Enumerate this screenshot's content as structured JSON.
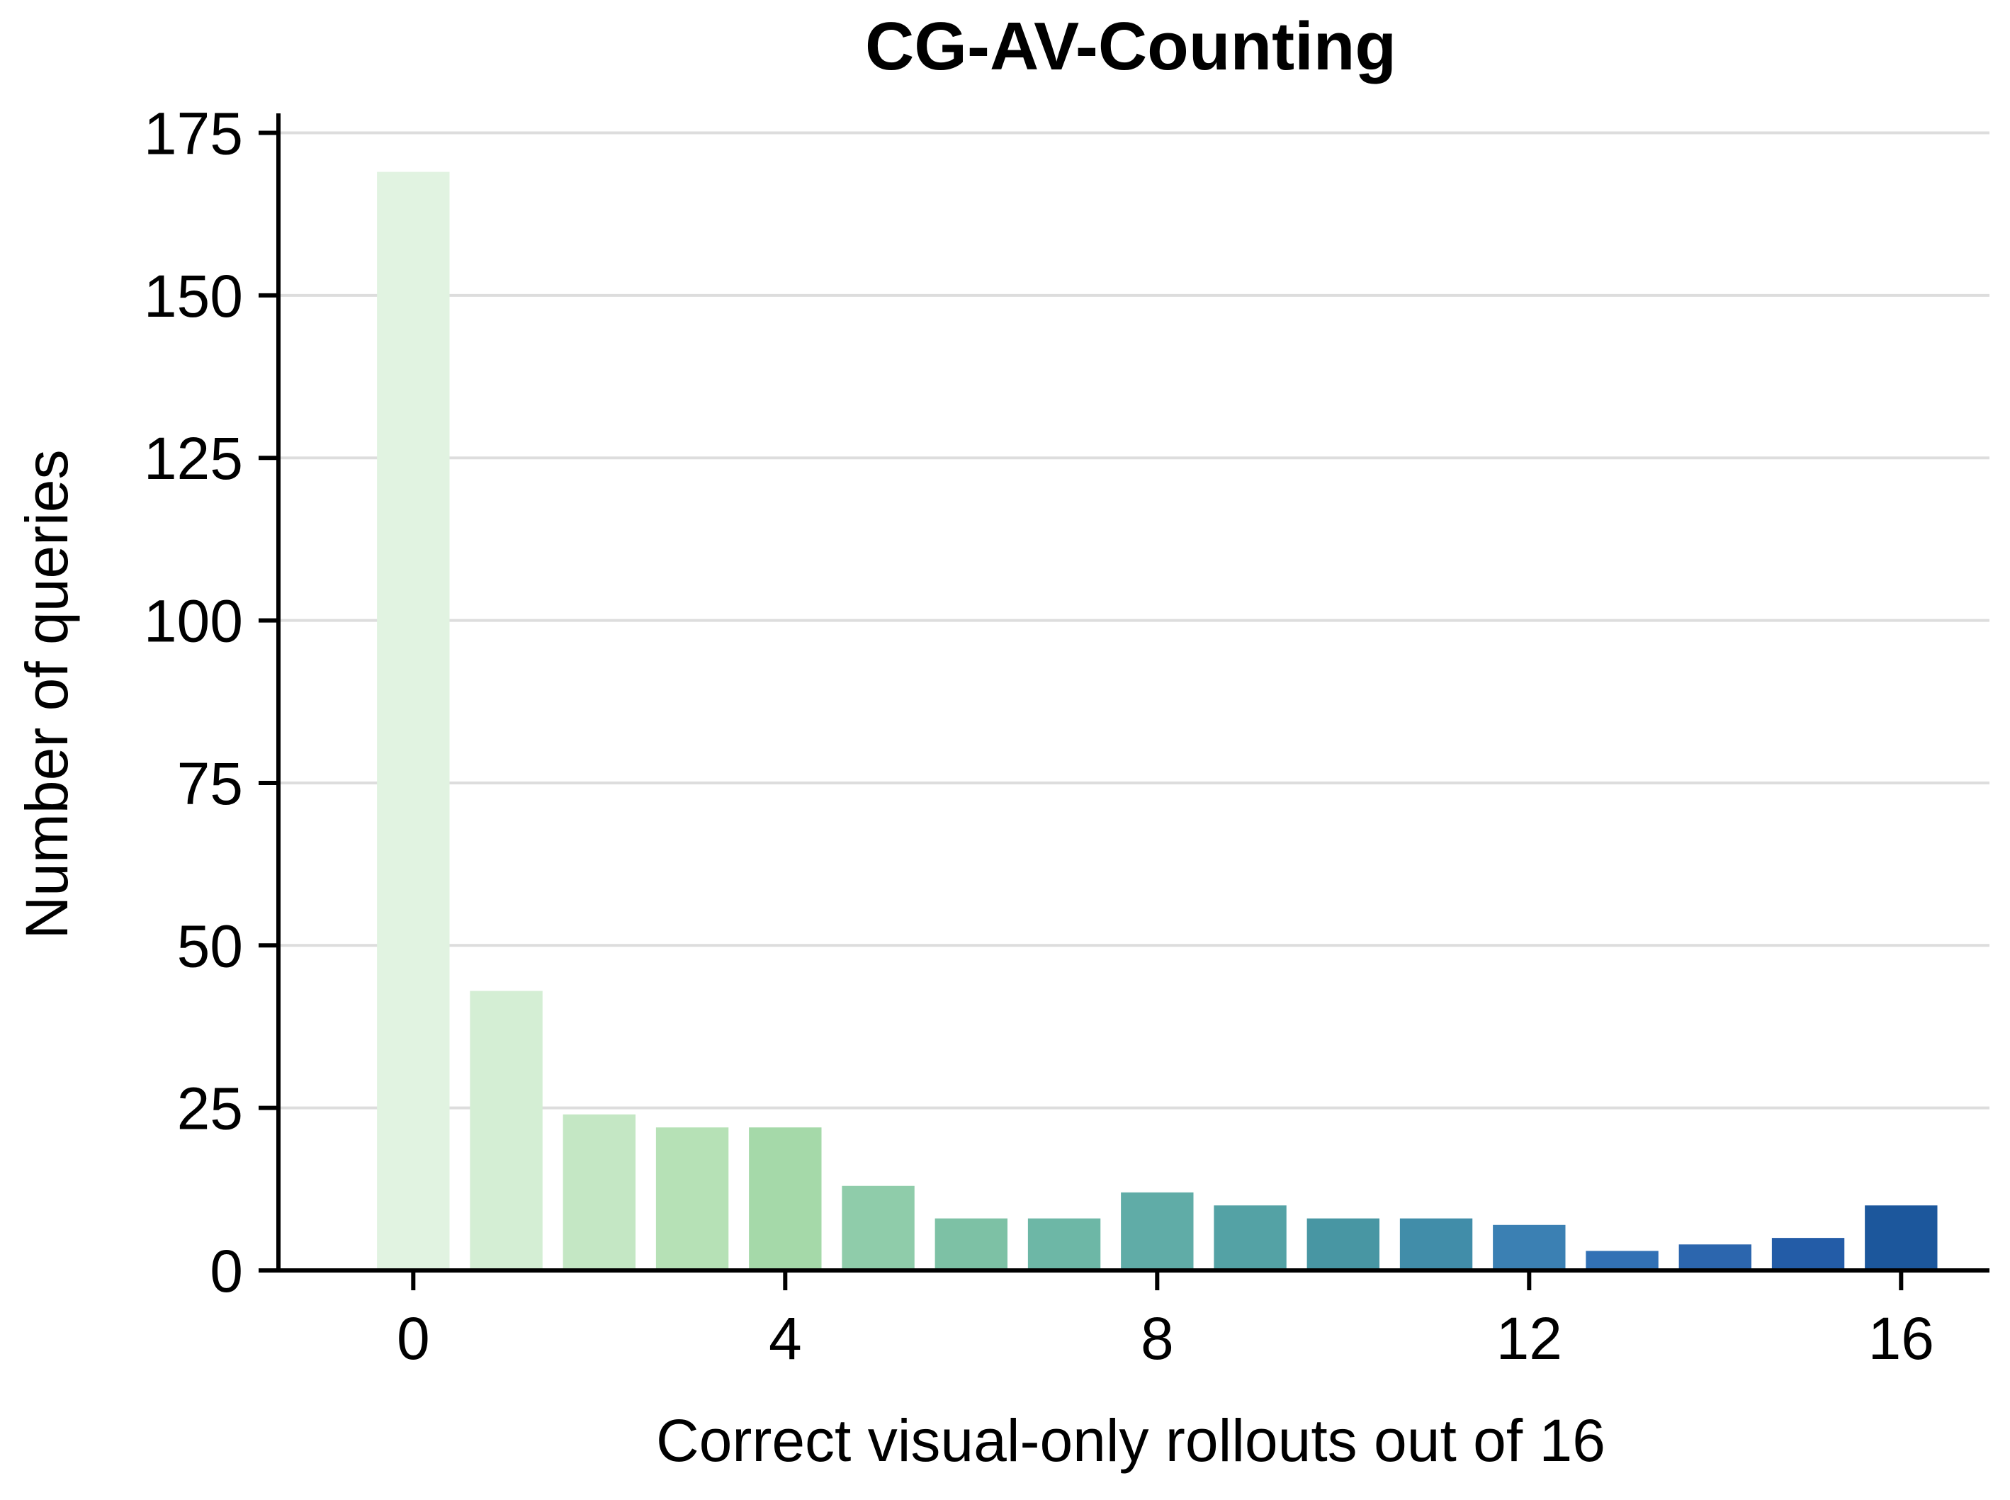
{
  "chart_data": {
    "type": "bar",
    "title": "CG-AV-Counting",
    "xlabel": "Correct visual-only rollouts out of 16",
    "ylabel": "Number of queries",
    "x": [
      0,
      1,
      2,
      3,
      4,
      5,
      6,
      7,
      8,
      9,
      10,
      11,
      12,
      13,
      14,
      15,
      16
    ],
    "values": [
      169,
      43,
      24,
      22,
      22,
      13,
      8,
      8,
      12,
      10,
      8,
      8,
      7,
      3,
      4,
      5,
      10
    ],
    "colors": [
      "#e1f3e1",
      "#d4eed4",
      "#c4e7c4",
      "#b6e1b6",
      "#a5d9a9",
      "#8fccaa",
      "#7dc1a5",
      "#6db7a6",
      "#60aca7",
      "#54a2a5",
      "#4896a3",
      "#418da9",
      "#3b80b3",
      "#3271b5",
      "#2c66ae",
      "#235ca7",
      "#1c579c"
    ],
    "xticks": [
      0,
      4,
      8,
      12,
      16
    ],
    "yticks": [
      0,
      25,
      50,
      75,
      100,
      125,
      150,
      175
    ],
    "xlim": [
      -1.45,
      16.95
    ],
    "ylim": [
      0,
      178
    ],
    "grid": "horizontal"
  }
}
